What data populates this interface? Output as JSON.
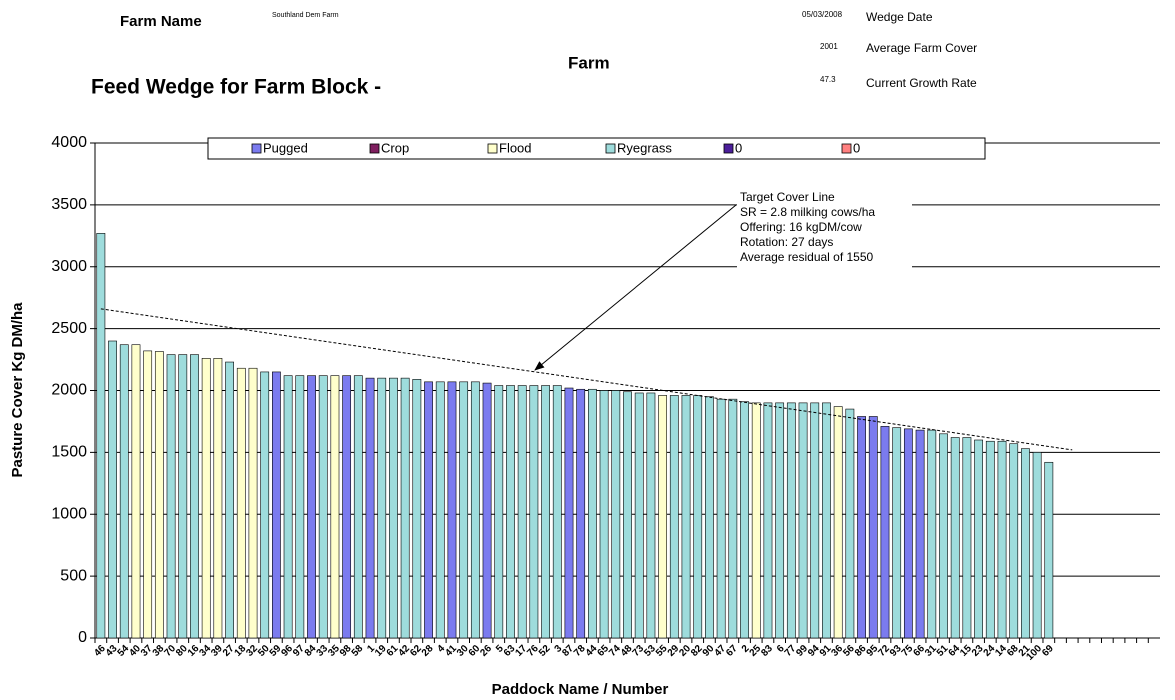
{
  "header": {
    "farm_name_label": "Farm Name",
    "farm_name": "Southland Dem Farm",
    "wedge_date": "05/03/2008",
    "wedge_date_label": "Wedge Date",
    "average_cover": "2001",
    "average_cover_label": "Average Farm Cover",
    "farm": "Farm",
    "growth_rate": "47.3",
    "growth_rate_label": "Current Growth Rate"
  },
  "chart_data": {
    "type": "bar",
    "title": "Feed Wedge for Farm Block -",
    "y_label": "Pasture Cover Kg DM/ha",
    "x_label": "Paddock Name / Number",
    "ylim": [
      0,
      4000
    ],
    "yticks": [
      0,
      500,
      1000,
      1500,
      2000,
      2500,
      3000,
      3500,
      4000
    ],
    "grid": true,
    "annotation": [
      "Target Cover Line",
      "SR = 2.8 milking cows/ha",
      "Offering: 16 kgDM/cow",
      "Rotation: 27 days",
      "Average residual of 1550"
    ],
    "trend_line": {
      "from": 2660,
      "to": 1520
    },
    "categories": [
      "46",
      "43",
      "54",
      "40",
      "37",
      "38",
      "70",
      "80",
      "16",
      "34",
      "39",
      "27",
      "18",
      "32",
      "50",
      "59",
      "96",
      "97",
      "84",
      "33",
      "35",
      "98",
      "58",
      "1",
      "19",
      "61",
      "42",
      "62",
      "28",
      "4",
      "41",
      "30",
      "60",
      "26",
      "5",
      "63",
      "17",
      "76",
      "52",
      "3",
      "87",
      "78",
      "44",
      "65",
      "74",
      "48",
      "73",
      "53",
      "55",
      "29",
      "20",
      "82",
      "90",
      "47",
      "67",
      "2",
      "25",
      "83",
      "6",
      "77",
      "99",
      "94",
      "91",
      "36",
      "56",
      "86",
      "95",
      "72",
      "93",
      "75",
      "66",
      "31",
      "51",
      "64",
      "15",
      "23",
      "24",
      "14",
      "68",
      "21",
      "100",
      "69",
      null,
      null,
      null,
      null,
      null,
      null,
      null,
      null,
      null
    ],
    "series": [
      {
        "name": "Pugged",
        "color": "#7b7bef",
        "values": [
          null,
          null,
          null,
          null,
          null,
          null,
          null,
          null,
          null,
          null,
          null,
          null,
          null,
          null,
          null,
          2150,
          null,
          null,
          2120,
          null,
          null,
          2120,
          null,
          2100,
          null,
          null,
          null,
          null,
          2070,
          null,
          2070,
          null,
          null,
          2060,
          null,
          null,
          null,
          null,
          null,
          null,
          2020,
          2010,
          null,
          null,
          null,
          null,
          null,
          null,
          null,
          null,
          null,
          null,
          null,
          null,
          null,
          null,
          null,
          null,
          null,
          null,
          null,
          null,
          null,
          null,
          null,
          1790,
          1790,
          1710,
          null,
          1690,
          1680,
          null,
          null,
          null,
          null,
          null,
          null,
          null,
          null,
          null,
          null,
          null,
          null,
          null,
          null,
          null,
          null,
          null,
          null,
          null,
          null
        ]
      },
      {
        "name": "Crop",
        "color": "#7f1f5f",
        "values": [
          null,
          null,
          null,
          null,
          null,
          null,
          null,
          null,
          null,
          null,
          null,
          null,
          null,
          null,
          null,
          null,
          null,
          null,
          null,
          null,
          null,
          null,
          null,
          null,
          null,
          null,
          null,
          null,
          null,
          null,
          null,
          null,
          null,
          null,
          null,
          null,
          null,
          null,
          null,
          null,
          null,
          null,
          null,
          null,
          null,
          null,
          null,
          null,
          null,
          null,
          null,
          null,
          null,
          null,
          null,
          null,
          null,
          null,
          null,
          null,
          null,
          null,
          null,
          null,
          null,
          null,
          null,
          null,
          null,
          null,
          null,
          null,
          null,
          null,
          null,
          null,
          null,
          null,
          null,
          null,
          null,
          null,
          null,
          null,
          null,
          null,
          null,
          null,
          null,
          null,
          null
        ]
      },
      {
        "name": "Flood",
        "color": "#ffffcc",
        "values": [
          null,
          null,
          null,
          2370,
          2320,
          2315,
          null,
          null,
          null,
          2260,
          2260,
          null,
          2180,
          2180,
          null,
          null,
          null,
          null,
          null,
          null,
          2120,
          null,
          null,
          null,
          null,
          null,
          null,
          null,
          null,
          null,
          null,
          null,
          null,
          null,
          null,
          null,
          null,
          null,
          null,
          null,
          null,
          null,
          null,
          null,
          null,
          null,
          null,
          null,
          1960,
          null,
          null,
          null,
          null,
          null,
          null,
          null,
          1900,
          null,
          null,
          null,
          null,
          null,
          null,
          1870,
          null,
          null,
          null,
          null,
          null,
          null,
          null,
          null,
          null,
          null,
          null,
          null,
          null,
          null,
          null,
          null,
          null,
          null,
          null,
          null,
          null,
          null,
          null,
          null,
          null,
          null,
          null
        ]
      },
      {
        "name": "Ryegrass",
        "color": "#9edcdc",
        "values": [
          3270,
          2400,
          2370,
          null,
          null,
          null,
          2290,
          2290,
          2290,
          null,
          null,
          2230,
          null,
          null,
          2150,
          null,
          2120,
          2120,
          null,
          2120,
          null,
          null,
          2120,
          null,
          2100,
          2100,
          2100,
          2090,
          null,
          2070,
          null,
          2070,
          2070,
          null,
          2040,
          2040,
          2040,
          2040,
          2040,
          2040,
          null,
          null,
          2010,
          2000,
          2000,
          1990,
          1980,
          1980,
          null,
          1960,
          1960,
          1960,
          1950,
          1930,
          1930,
          1910,
          null,
          1900,
          1900,
          1900,
          1900,
          1900,
          1900,
          null,
          1850,
          null,
          null,
          null,
          1700,
          null,
          null,
          1680,
          1650,
          1620,
          1620,
          1600,
          1590,
          1590,
          1570,
          1530,
          1500,
          1420,
          null,
          null,
          null,
          null,
          null,
          null,
          null,
          null,
          null
        ]
      },
      {
        "name": "0",
        "color": "#4b1e9a",
        "values": [
          null,
          null,
          null,
          null,
          null,
          null,
          null,
          null,
          null,
          null,
          null,
          null,
          null,
          null,
          null,
          null,
          null,
          null,
          null,
          null,
          null,
          null,
          null,
          null,
          null,
          null,
          null,
          null,
          null,
          null,
          null,
          null,
          null,
          null,
          null,
          null,
          null,
          null,
          null,
          null,
          null,
          null,
          null,
          null,
          null,
          null,
          null,
          null,
          null,
          null,
          null,
          null,
          null,
          null,
          null,
          null,
          null,
          null,
          null,
          null,
          null,
          null,
          null,
          null,
          null,
          null,
          null,
          null,
          null,
          null,
          null,
          null,
          null,
          null,
          null,
          null,
          null,
          null,
          null,
          null,
          null,
          null,
          null,
          null,
          null,
          null,
          null,
          null,
          null,
          null,
          null
        ]
      },
      {
        "name": "0",
        "color": "#ff8080",
        "values": [
          null,
          null,
          null,
          null,
          null,
          null,
          null,
          null,
          null,
          null,
          null,
          null,
          null,
          null,
          null,
          null,
          null,
          null,
          null,
          null,
          null,
          null,
          null,
          null,
          null,
          null,
          null,
          null,
          null,
          null,
          null,
          null,
          null,
          null,
          null,
          null,
          null,
          null,
          null,
          null,
          null,
          null,
          null,
          null,
          null,
          null,
          null,
          null,
          null,
          null,
          null,
          null,
          null,
          null,
          null,
          null,
          null,
          null,
          null,
          null,
          null,
          null,
          null,
          null,
          null,
          null,
          null,
          null,
          null,
          null,
          null,
          null,
          null,
          null,
          null,
          null,
          null,
          null,
          null,
          null,
          null,
          null,
          null,
          null,
          null,
          null,
          null,
          null,
          null,
          null,
          null
        ]
      }
    ]
  }
}
